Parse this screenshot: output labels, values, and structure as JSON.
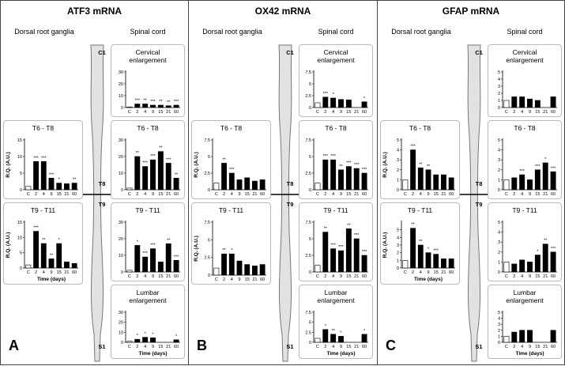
{
  "panels": [
    {
      "title": "ATF3 mRNA",
      "letter": "A",
      "drg_heading": "Dorsal root ganglia",
      "sc_heading": "Spinal cord",
      "cord_labels": [
        "C1",
        "T8",
        "T9",
        "S1"
      ]
    },
    {
      "title": "OX42 mRNA",
      "letter": "B",
      "drg_heading": "Dorsal root ganglia",
      "sc_heading": "Spinal cord",
      "cord_labels": [
        "C1",
        "T8",
        "T9",
        "S1"
      ]
    },
    {
      "title": "GFAP mRNA",
      "letter": "C",
      "drg_heading": "Dorsal root ganglia",
      "sc_heading": "Spinal cord",
      "cord_labels": [
        "C1",
        "T8",
        "T9",
        "S1"
      ]
    }
  ],
  "chart_data": [
    {
      "type": "bar",
      "title": "T6 - T8",
      "ylabel": "R.Q. (A.U.)",
      "categories": [
        "C",
        "2",
        "4",
        "9",
        "15",
        "21",
        "60"
      ],
      "values": [
        1,
        8.5,
        8.5,
        3.5,
        2,
        1.8,
        2
      ],
      "annotations": [
        null,
        "***",
        "***",
        "***",
        "*",
        null,
        "**"
      ],
      "ylim": [
        0,
        15
      ],
      "yticks": [
        0,
        5,
        10,
        15
      ],
      "color": "#000000",
      "control_color": "#ffffff"
    },
    {
      "type": "bar",
      "title": "T9 - T11",
      "ylabel": "R.Q. (A.U.)",
      "xlabel": "Time (days)",
      "categories": [
        "C",
        "2",
        "4",
        "9",
        "15",
        "21",
        "60"
      ],
      "values": [
        1,
        12,
        8,
        3,
        8,
        2,
        1.5
      ],
      "annotations": [
        null,
        "***",
        "**",
        "**",
        "*",
        null,
        null
      ],
      "ylim": [
        0,
        15
      ],
      "yticks": [
        0,
        5,
        10,
        15
      ],
      "color": "#000000",
      "control_color": "#ffffff"
    },
    {
      "type": "bar",
      "title": "Cervical enlargement",
      "categories": [
        "C",
        "2",
        "4",
        "9",
        "15",
        "21",
        "60"
      ],
      "values": [
        0.5,
        3,
        3,
        2,
        2,
        1.5,
        2
      ],
      "annotations": [
        null,
        "***",
        "**",
        "***",
        "**",
        "**",
        "***"
      ],
      "ylim": [
        0,
        30
      ],
      "yticks": [
        0,
        10,
        20,
        30
      ],
      "color": "#000000",
      "control_color": "#ffffff"
    },
    {
      "type": "bar",
      "title": "T6 - T8",
      "categories": [
        "C",
        "2",
        "4",
        "9",
        "15",
        "21",
        "60"
      ],
      "values": [
        1,
        20,
        14,
        18,
        23,
        16,
        7
      ],
      "annotations": [
        null,
        "**",
        "***",
        "***",
        "**",
        "***",
        "**"
      ],
      "ylim": [
        0,
        30
      ],
      "yticks": [
        0,
        10,
        20,
        30
      ],
      "color": "#000000",
      "control_color": "#ffffff"
    },
    {
      "type": "bar",
      "title": "T9 - T11",
      "categories": [
        "C",
        "2",
        "4",
        "9",
        "15",
        "21",
        "60"
      ],
      "values": [
        1,
        16,
        9,
        14,
        6,
        17,
        7
      ],
      "annotations": [
        null,
        "*",
        "***",
        "***",
        null,
        "**",
        "***"
      ],
      "ylim": [
        0,
        30
      ],
      "yticks": [
        0,
        10,
        20,
        30
      ],
      "color": "#000000",
      "control_color": "#ffffff"
    },
    {
      "type": "bar",
      "title": "Lumbar enlargement",
      "xlabel": "Time (days)",
      "categories": [
        "C",
        "2",
        "4",
        "9",
        "15",
        "21",
        "60"
      ],
      "values": [
        1,
        3,
        5,
        4.5,
        null,
        null,
        2.5
      ],
      "annotations": [
        null,
        "*",
        "*",
        "*",
        null,
        null,
        "*"
      ],
      "ylim": [
        0,
        30
      ],
      "yticks": [
        0,
        10,
        20,
        30
      ],
      "color": "#000000",
      "control_color": "#ffffff"
    },
    {
      "type": "bar",
      "title": "T6 - T8",
      "ylabel": "R.Q. (A.U.)",
      "categories": [
        "C",
        "2",
        "4",
        "9",
        "15",
        "21",
        "60"
      ],
      "values": [
        1,
        4,
        2.5,
        1.5,
        1.8,
        1.3,
        1.5
      ],
      "annotations": [
        null,
        "**",
        "***",
        null,
        null,
        null,
        null
      ],
      "ylim": [
        0,
        7.5
      ],
      "yticks": [
        0,
        2.5,
        5,
        7.5
      ],
      "color": "#000000",
      "control_color": "#ffffff"
    },
    {
      "type": "bar",
      "title": "T9 - T11",
      "ylabel": "R.Q. (A.U.)",
      "categories": [
        "C",
        "2",
        "4",
        "9",
        "15",
        "21",
        "60"
      ],
      "values": [
        1,
        3,
        3,
        2,
        1.5,
        1.3,
        1.5
      ],
      "annotations": [
        null,
        "**",
        "*",
        null,
        null,
        null,
        null
      ],
      "ylim": [
        0,
        7.5
      ],
      "yticks": [
        0,
        2.5,
        5,
        7.5
      ],
      "color": "#000000",
      "control_color": "#ffffff"
    },
    {
      "type": "bar",
      "title": "Cervical enlargement",
      "categories": [
        "C",
        "2",
        "4",
        "9",
        "15",
        "21",
        "60"
      ],
      "values": [
        1,
        2.2,
        2,
        1.7,
        1.6,
        null,
        1.2
      ],
      "annotations": [
        null,
        "***",
        "*",
        null,
        null,
        null,
        "*"
      ],
      "ylim": [
        0,
        7.5
      ],
      "yticks": [
        0,
        2.5,
        5,
        7.5
      ],
      "color": "#000000",
      "control_color": "#ffffff"
    },
    {
      "type": "bar",
      "title": "T6 - T8",
      "categories": [
        "C",
        "2",
        "4",
        "9",
        "15",
        "21",
        "60"
      ],
      "values": [
        1,
        4.5,
        4.5,
        3,
        3.5,
        3.2,
        2.5
      ],
      "annotations": [
        null,
        "***",
        "***",
        "**",
        "***",
        "***",
        "***"
      ],
      "ylim": [
        0,
        7.5
      ],
      "yticks": [
        0,
        2.5,
        5,
        7.5
      ],
      "color": "#000000",
      "control_color": "#ffffff"
    },
    {
      "type": "bar",
      "title": "T9 - T11",
      "categories": [
        "C",
        "2",
        "4",
        "9",
        "15",
        "21",
        "60"
      ],
      "values": [
        1,
        6,
        3.5,
        3.2,
        6.5,
        5,
        2.5
      ],
      "annotations": [
        null,
        "**",
        "***",
        "***",
        "**",
        "***",
        "***"
      ],
      "ylim": [
        0,
        7.5
      ],
      "yticks": [
        0,
        2.5,
        5,
        7.5
      ],
      "color": "#000000",
      "control_color": "#ffffff"
    },
    {
      "type": "bar",
      "title": "Lumbar enlargement",
      "xlabel": "Time (days)",
      "categories": [
        "C",
        "2",
        "4",
        "9",
        "15",
        "21",
        "60"
      ],
      "values": [
        1,
        3.2,
        2,
        1.5,
        null,
        null,
        2
      ],
      "annotations": [
        null,
        "*",
        "**",
        "*",
        null,
        null,
        "*"
      ],
      "ylim": [
        0,
        7.5
      ],
      "yticks": [
        0,
        2.5,
        5,
        7.5
      ],
      "color": "#000000",
      "control_color": "#ffffff"
    },
    {
      "type": "bar",
      "title": "T6 - T8",
      "ylabel": "R.Q. (A.U.)",
      "categories": [
        "C",
        "2",
        "4",
        "9",
        "15",
        "21",
        "60"
      ],
      "values": [
        1,
        4,
        2.2,
        2,
        1.5,
        1.5,
        1.2
      ],
      "annotations": [
        null,
        "***",
        "**",
        "**",
        null,
        null,
        null
      ],
      "ylim": [
        0,
        5
      ],
      "yticks": [
        0,
        1,
        2,
        3,
        4,
        5
      ],
      "color": "#000000",
      "control_color": "#ffffff"
    },
    {
      "type": "bar",
      "title": "T9 - T11",
      "ylabel": "R.Q. (A.U.)",
      "xlabel": "Time (days)",
      "categories": [
        "C",
        "2",
        "4",
        "9",
        "15",
        "21",
        "60"
      ],
      "values": [
        1,
        5.2,
        3,
        2,
        1.8,
        1.2,
        1.2
      ],
      "annotations": [
        null,
        "**",
        "**",
        "*",
        "***",
        null,
        null
      ],
      "ylim": [
        0,
        6
      ],
      "yticks": [
        0,
        1,
        2,
        3,
        4,
        5
      ],
      "color": "#000000",
      "control_color": "#ffffff"
    },
    {
      "type": "bar",
      "title": "Cervical enlargement",
      "categories": [
        "C",
        "2",
        "4",
        "9",
        "15",
        "21",
        "60"
      ],
      "values": [
        1,
        1.5,
        1.5,
        1.2,
        1,
        null,
        1.5
      ],
      "annotations": [
        null,
        null,
        null,
        null,
        null,
        null,
        null
      ],
      "ylim": [
        0,
        5
      ],
      "yticks": [
        0,
        1,
        2,
        3,
        4,
        5
      ],
      "color": "#000000",
      "control_color": "#ffffff"
    },
    {
      "type": "bar",
      "title": "T6 - T8",
      "categories": [
        "C",
        "2",
        "4",
        "9",
        "15",
        "21",
        "60"
      ],
      "values": [
        1,
        1.2,
        1.5,
        1,
        2,
        2.7,
        1.8
      ],
      "annotations": [
        null,
        null,
        "***",
        null,
        "***",
        "*",
        "***"
      ],
      "ylim": [
        0,
        5
      ],
      "yticks": [
        0,
        1,
        2,
        3,
        4,
        5
      ],
      "color": "#000000",
      "control_color": "#ffffff"
    },
    {
      "type": "bar",
      "title": "T9 - T11",
      "categories": [
        "C",
        "2",
        "4",
        "9",
        "15",
        "21",
        "60"
      ],
      "values": [
        1,
        0.8,
        1.2,
        1,
        1.7,
        2.8,
        2
      ],
      "annotations": [
        null,
        null,
        null,
        null,
        "*",
        "**",
        "***"
      ],
      "ylim": [
        0,
        5
      ],
      "yticks": [
        0,
        1,
        2,
        3,
        4,
        5
      ],
      "color": "#000000",
      "control_color": "#ffffff"
    },
    {
      "type": "bar",
      "title": "Lumbar enlargement",
      "xlabel": "Time (days)",
      "categories": [
        "C",
        "2",
        "4",
        "9",
        "15",
        "21",
        "60"
      ],
      "values": [
        1,
        1.7,
        2,
        2,
        null,
        null,
        2
      ],
      "annotations": [
        null,
        null,
        null,
        null,
        null,
        null,
        null
      ],
      "ylim": [
        0,
        5
      ],
      "yticks": [
        0,
        1,
        2,
        3,
        4,
        5
      ],
      "color": "#000000",
      "control_color": "#ffffff"
    }
  ]
}
